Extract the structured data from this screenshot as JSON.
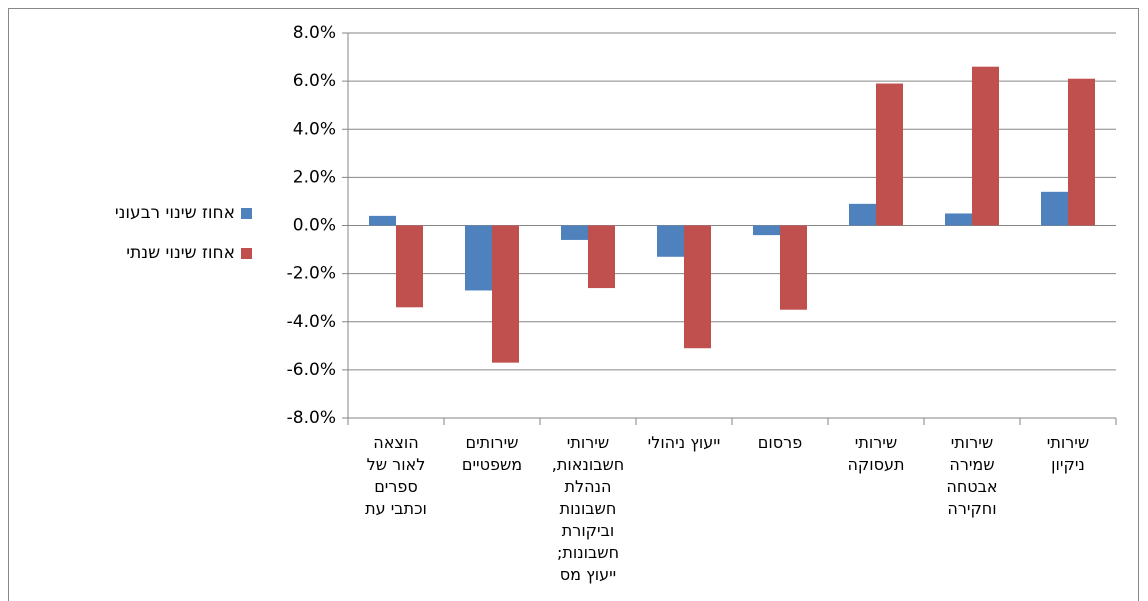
{
  "chart_data": {
    "type": "bar",
    "categories": [
      "הוצאה לאור של ספרים וכתבי עת",
      "שירותים משפטיים",
      "שירותי חשבונאות, הנהלת חשבונות וביקורת חשבונות; ייעוץ מס",
      "ייעוץ ניהולי",
      "פרסום",
      "שירותי תעסוקה",
      "שירותי שמירה אבטחה וחקירה",
      "שירותי ניקיון"
    ],
    "series": [
      {
        "name": "אחוז שינוי רבעוני",
        "color": "#4f81bd",
        "values": [
          0.4,
          -2.7,
          -0.6,
          -1.3,
          -0.4,
          0.9,
          0.5,
          1.4
        ]
      },
      {
        "name": "אחוז שינוי שנתי",
        "color": "#c0504d",
        "values": [
          -3.4,
          -5.7,
          -2.6,
          -5.1,
          -3.5,
          5.9,
          6.6,
          6.1
        ]
      }
    ],
    "ylim": [
      -8,
      8
    ],
    "yticks": [
      {
        "value": -8,
        "label": "-8.0%"
      },
      {
        "value": -6,
        "label": "-6.0%"
      },
      {
        "value": -4,
        "label": "-4.0%"
      },
      {
        "value": -2,
        "label": "-2.0%"
      },
      {
        "value": 0,
        "label": "0.0%"
      },
      {
        "value": 2,
        "label": "2.0%"
      },
      {
        "value": 4,
        "label": "4.0%"
      },
      {
        "value": 6,
        "label": "6.0%"
      },
      {
        "value": 8,
        "label": "8.0%"
      }
    ],
    "grid": true,
    "legend": "left"
  }
}
